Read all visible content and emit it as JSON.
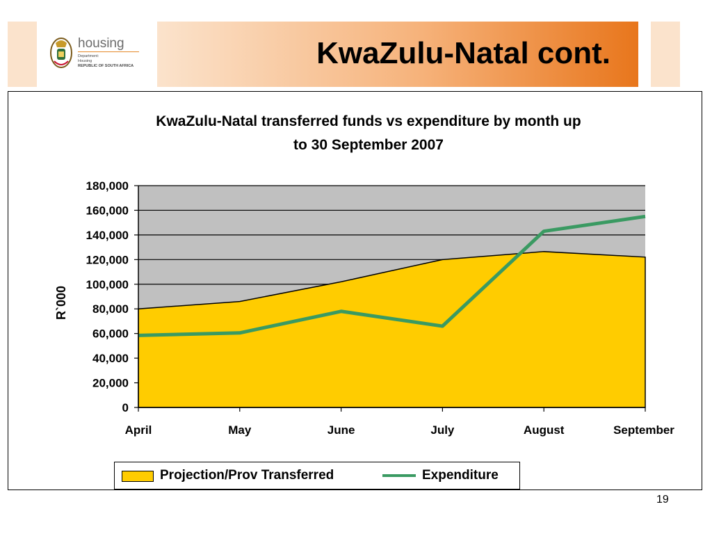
{
  "slide": {
    "title": "KwaZulu-Natal cont.",
    "page_number": "19"
  },
  "logo": {
    "word": "housing",
    "line1": "Department:",
    "line2": "Housing",
    "line3": "REPUBLIC OF SOUTH AFRICA"
  },
  "colors": {
    "banner_light": "#fbe3cc",
    "banner_dark": "#e8761c",
    "plot_background": "#c0c0c0",
    "area_fill": "#ffcc00",
    "line_color": "#3a9a62"
  },
  "chart_data": {
    "type": "area",
    "title_line1": "KwaZulu-Natal transferred funds vs expenditure by month up",
    "title_line2": "to 30 September 2007",
    "xlabel": "",
    "ylabel": "R`000",
    "categories": [
      "April",
      "May",
      "June",
      "July",
      "August",
      "September"
    ],
    "ylim": [
      0,
      180000
    ],
    "yticks": [
      0,
      20000,
      40000,
      60000,
      80000,
      100000,
      120000,
      140000,
      160000,
      180000
    ],
    "ytick_labels": [
      "0",
      "20,000",
      "40,000",
      "60,000",
      "80,000",
      "100,000",
      "120,000",
      "140,000",
      "160,000",
      "180,000"
    ],
    "grid": true,
    "legend_position": "bottom",
    "series": [
      {
        "name": "Projection/Prov Transferred",
        "type": "area",
        "values": [
          80000,
          86000,
          102000,
          120000,
          126500,
          122000
        ]
      },
      {
        "name": "Expenditure",
        "type": "line",
        "values": [
          58500,
          60500,
          78000,
          66000,
          143000,
          155000
        ]
      }
    ]
  }
}
